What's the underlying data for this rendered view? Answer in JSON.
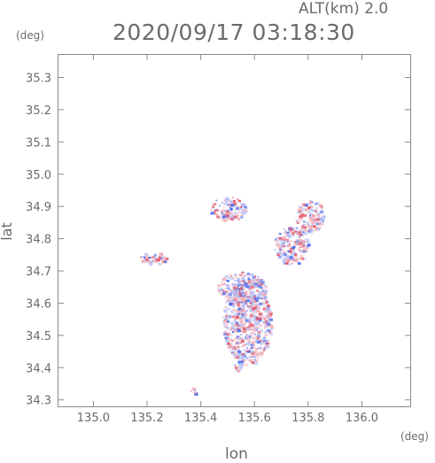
{
  "chart_data": {
    "type": "scatter",
    "title": "2020/09/17 03:18:30",
    "altitude_label": "ALT(km) 2.0",
    "xlabel": "lon",
    "ylabel": "lat",
    "x_unit": "(deg)",
    "y_unit": "(deg)",
    "xlim": [
      134.87,
      136.18
    ],
    "ylim": [
      34.28,
      35.37
    ],
    "x_ticks": [
      135.0,
      135.2,
      135.4,
      135.6,
      135.8,
      136.0
    ],
    "x_tick_labels": [
      "135.0",
      "135.2",
      "135.4",
      "135.6",
      "135.8",
      "136.0"
    ],
    "y_ticks": [
      34.3,
      34.4,
      34.5,
      34.6,
      34.7,
      34.8,
      34.9,
      35.0,
      35.1,
      35.2,
      35.3
    ],
    "y_tick_labels": [
      "34.3",
      "34.4",
      "34.5",
      "34.6",
      "34.7",
      "34.8",
      "34.9",
      "35.0",
      "35.1",
      "35.2",
      "35.3"
    ],
    "grid": false,
    "colors": {
      "positive": "#e5596b",
      "negative": "#4a6cf0",
      "light_positive": "#f2b6c0",
      "light_negative": "#b7c4f7",
      "frame": "#8a8a8a"
    },
    "echo_regions": [
      {
        "lon": [
          135.48,
          135.66
        ],
        "lat": [
          34.41,
          34.68
        ]
      },
      {
        "lon": [
          135.46,
          135.64
        ],
        "lat": [
          34.6,
          34.7
        ]
      },
      {
        "lon": [
          135.67,
          135.8
        ],
        "lat": [
          34.72,
          34.84
        ]
      },
      {
        "lon": [
          135.75,
          135.86
        ],
        "lat": [
          34.82,
          34.92
        ]
      },
      {
        "lon": [
          135.43,
          135.57
        ],
        "lat": [
          34.86,
          34.93
        ]
      },
      {
        "lon": [
          135.17,
          135.27
        ],
        "lat": [
          34.72,
          34.76
        ]
      },
      {
        "lon": [
          135.36,
          135.39
        ],
        "lat": [
          34.32,
          34.34
        ]
      },
      {
        "lon": [
          135.52,
          135.55
        ],
        "lat": [
          34.39,
          34.42
        ]
      }
    ]
  }
}
